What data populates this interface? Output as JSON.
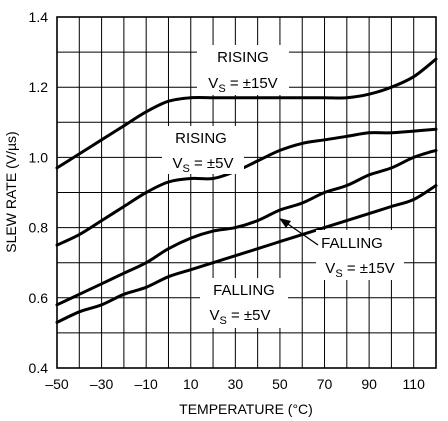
{
  "chart_data": {
    "type": "line",
    "title": "",
    "xlabel": "TEMPERATURE (°C)",
    "ylabel": "SLEW RATE (V/µs)",
    "xlim": [
      -50,
      120
    ],
    "ylim": [
      0.4,
      1.4
    ],
    "x_ticks": [
      "–50",
      "–30",
      "–10",
      "10",
      "30",
      "50",
      "70",
      "90",
      "110"
    ],
    "x_tick_values": [
      -50,
      -30,
      -10,
      10,
      30,
      50,
      70,
      90,
      110
    ],
    "y_ticks": [
      "0.4",
      "0.6",
      "0.8",
      "1.0",
      "1.2",
      "1.4"
    ],
    "y_tick_values": [
      0.4,
      0.6,
      0.8,
      1.0,
      1.2,
      1.4
    ],
    "grid": true,
    "series": [
      {
        "label_line1": "RISING",
        "label_line2": "VS = ±15V",
        "x": [
          -50,
          -40,
          -30,
          -20,
          -10,
          0,
          10,
          20,
          30,
          40,
          50,
          60,
          70,
          80,
          90,
          100,
          110,
          120
        ],
        "y": [
          0.97,
          1.01,
          1.05,
          1.09,
          1.13,
          1.16,
          1.17,
          1.17,
          1.17,
          1.17,
          1.17,
          1.17,
          1.17,
          1.17,
          1.18,
          1.2,
          1.23,
          1.28
        ]
      },
      {
        "label_line1": "RISING",
        "label_line2": "VS = ±5V",
        "x": [
          -50,
          -40,
          -30,
          -20,
          -10,
          0,
          10,
          20,
          30,
          40,
          50,
          60,
          70,
          80,
          90,
          100,
          110,
          120
        ],
        "y": [
          0.75,
          0.78,
          0.82,
          0.86,
          0.9,
          0.93,
          0.94,
          0.94,
          0.96,
          0.99,
          1.02,
          1.04,
          1.05,
          1.06,
          1.07,
          1.07,
          1.075,
          1.08
        ]
      },
      {
        "label_line1": "FALLING",
        "label_line2": "VS = ±15V",
        "x": [
          -50,
          -40,
          -30,
          -20,
          -10,
          0,
          10,
          20,
          30,
          40,
          50,
          60,
          70,
          80,
          90,
          100,
          110,
          120
        ],
        "y": [
          0.58,
          0.61,
          0.64,
          0.67,
          0.7,
          0.74,
          0.77,
          0.79,
          0.8,
          0.82,
          0.85,
          0.87,
          0.9,
          0.92,
          0.95,
          0.97,
          1.0,
          1.02
        ]
      },
      {
        "label_line1": "FALLING",
        "label_line2": "VS = ±5V",
        "x": [
          -50,
          -40,
          -30,
          -20,
          -10,
          0,
          10,
          20,
          30,
          40,
          50,
          60,
          70,
          80,
          90,
          100,
          110,
          120
        ],
        "y": [
          0.53,
          0.56,
          0.58,
          0.61,
          0.63,
          0.66,
          0.68,
          0.7,
          0.72,
          0.74,
          0.76,
          0.78,
          0.8,
          0.82,
          0.84,
          0.86,
          0.88,
          0.92
        ]
      }
    ],
    "annotations": [
      {
        "line1": "RISING",
        "v": "V",
        "sub": "S",
        "rest": " = ±15V"
      },
      {
        "line1": "RISING",
        "v": "V",
        "sub": "S",
        "rest": " = ±5V"
      },
      {
        "line1": "FALLING",
        "v": "V",
        "sub": "S",
        "rest": " = ±15V"
      },
      {
        "line1": "FALLING",
        "v": "V",
        "sub": "S",
        "rest": " = ±5V"
      }
    ]
  }
}
